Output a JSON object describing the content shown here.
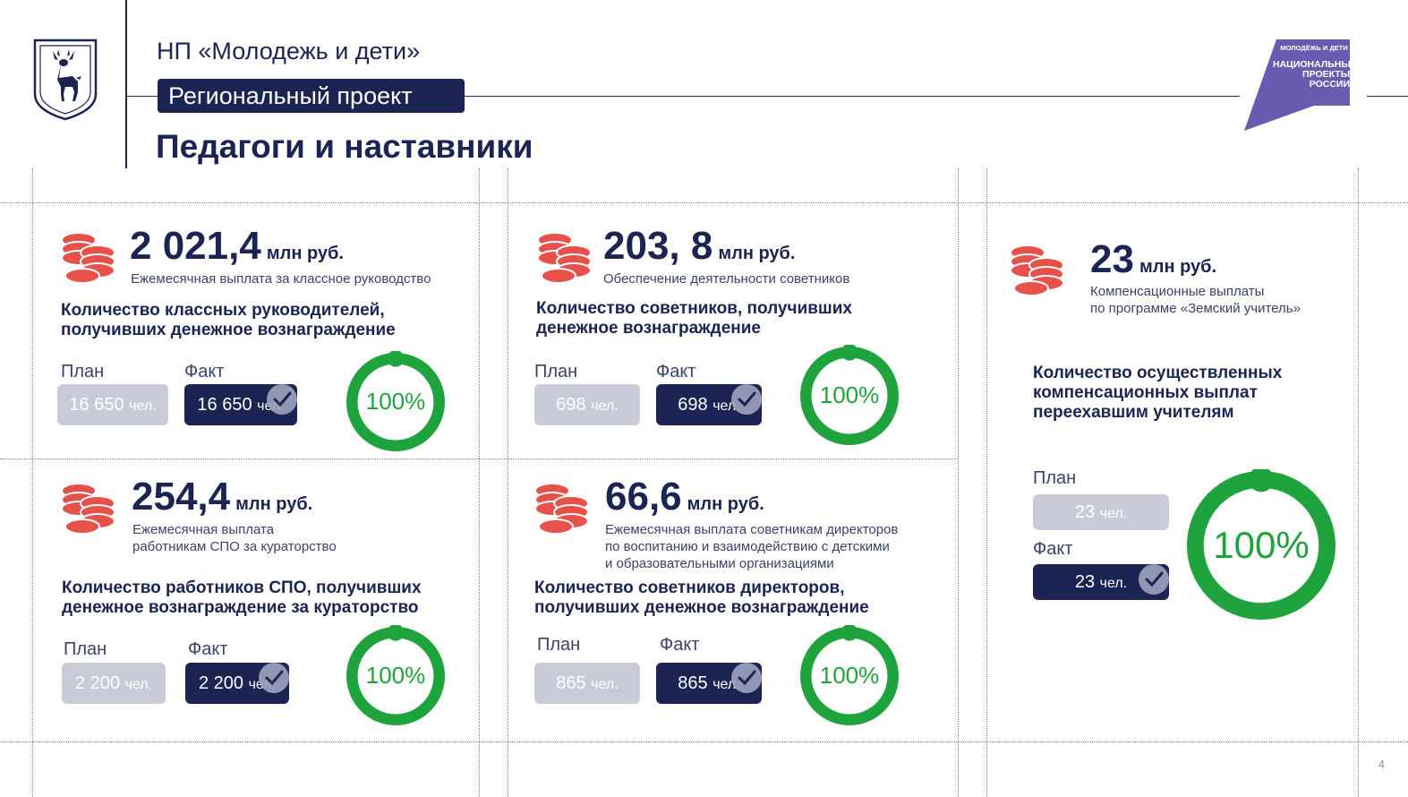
{
  "header": {
    "org": "НП «Молодежь и дети»",
    "project_label": "Региональный проект",
    "title": "Педагоги и наставники"
  },
  "logo_right": {
    "line1": "МОЛОДЁЖЬ И ДЕТИ",
    "line2": "НАЦИОНАЛЬНЫЕ",
    "line3": "ПРОЕКТЫ",
    "line4": "РОССИИ"
  },
  "colors": {
    "navy": "#1b2452",
    "green": "#1fa33d",
    "coin_red": "#e8504a",
    "plan_gray": "#c9ccd8",
    "logo_purple": "#6b5bb0"
  },
  "cards": [
    {
      "amount": "2 021,4",
      "unit": "млн руб.",
      "desc": [
        "Ежемесячная выплата за классное руководство"
      ],
      "heading": [
        "Количество классных руководителей,",
        "получивших денежное вознаграждение"
      ],
      "plan_label": "План",
      "fact_label": "Факт",
      "plan_value": "16 650",
      "fact_value": "16 650",
      "value_unit": "чел.",
      "percent": "100%",
      "progress": 1.0
    },
    {
      "amount": "203, 8",
      "unit": "млн руб.",
      "desc": [
        "Обеспечение деятельности советников"
      ],
      "heading": [
        "Количество советников, получивших",
        "денежное вознаграждение"
      ],
      "plan_label": "План",
      "fact_label": "Факт",
      "plan_value": "698",
      "fact_value": "698",
      "value_unit": "чел.",
      "percent": "100%",
      "progress": 1.0
    },
    {
      "amount": "254,4",
      "unit": "млн руб.",
      "desc": [
        "Ежемесячная выплата",
        "работникам СПО за кураторство"
      ],
      "heading": [
        "Количество работников СПО, получивших",
        "денежное вознаграждение за кураторство"
      ],
      "plan_label": "План",
      "fact_label": "Факт",
      "plan_value": "2 200",
      "fact_value": "2 200",
      "value_unit": "чел.",
      "percent": "100%",
      "progress": 1.0
    },
    {
      "amount": "66,6",
      "unit": "млн руб.",
      "desc": [
        "Ежемесячная выплата советникам директоров",
        "по воспитанию и взаимодействию с детскими",
        " и  образовательными организациями"
      ],
      "heading": [
        "Количество советников директоров,",
        "получивших денежное вознаграждение"
      ],
      "plan_label": "План",
      "fact_label": "Факт",
      "plan_value": "865",
      "fact_value": "865",
      "value_unit": "чел.",
      "percent": "100%",
      "progress": 1.0
    },
    {
      "amount": "23",
      "unit": "млн руб.",
      "desc": [
        "Компенсационные выплаты",
        "по программе «Земский учитель»"
      ],
      "heading": [
        "Количество осуществленных",
        "компенсационных выплат",
        "переехавшим учителям"
      ],
      "plan_label": "План",
      "fact_label": "Факт",
      "plan_value": "23",
      "fact_value": "23",
      "value_unit": "чел.",
      "percent": "100%",
      "progress": 1.0
    }
  ],
  "page_number": "4"
}
